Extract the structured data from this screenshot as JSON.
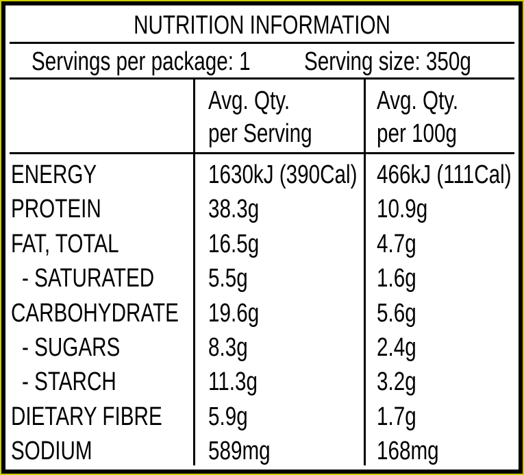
{
  "title": "NUTRITION INFORMATION",
  "servings": "Servings per package: 1",
  "serving_size": "Serving size: 350g",
  "table": {
    "header": [
      [
        "Avg. Qty.",
        "per Serving"
      ],
      [
        "Avg. Qty.",
        "per 100g"
      ]
    ],
    "rows": [
      [
        "ENERGY",
        "1630kJ (390Cal)",
        "466kJ (111Cal)"
      ],
      [
        "PROTEIN",
        "38.3g",
        "10.9g"
      ],
      [
        "FAT, TOTAL",
        "16.5g",
        "4.7g"
      ],
      [
        "- SATURATED",
        "5.5g",
        "1.6g"
      ],
      [
        "CARBOHYDRATE",
        "19.6g",
        "5.6g"
      ],
      [
        "- SUGARS",
        "8.3g",
        "2.4g"
      ],
      [
        "- STARCH",
        "11.3g",
        "3.2g"
      ],
      [
        "DIETARY FIBRE",
        "5.9g",
        "1.7g"
      ],
      [
        "SODIUM",
        "589mg",
        "168mg"
      ]
    ]
  }
}
